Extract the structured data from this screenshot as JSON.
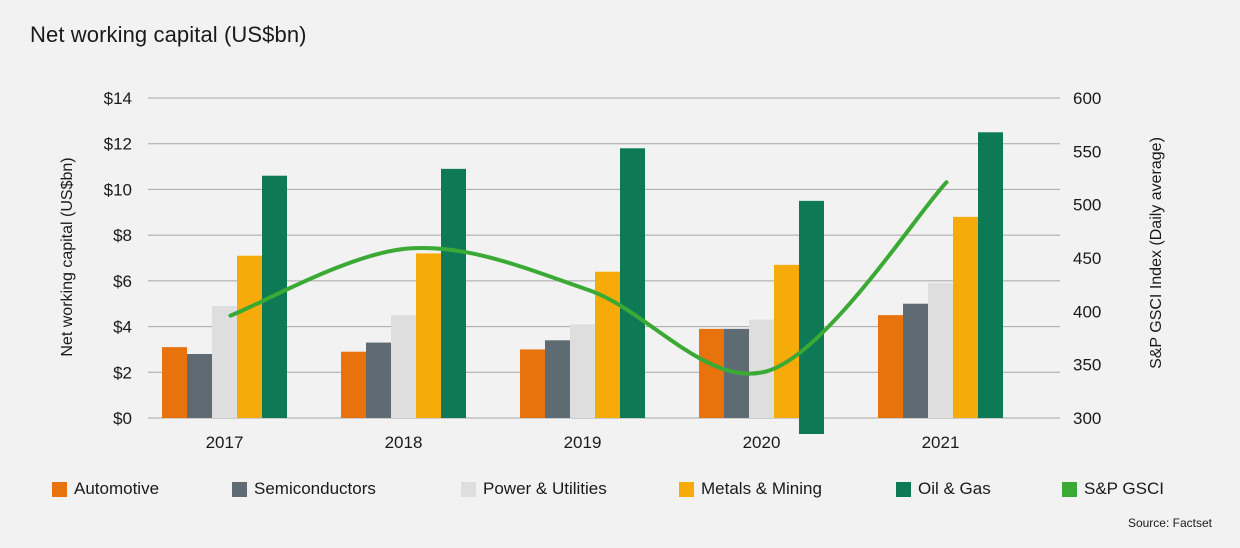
{
  "title": "Net working capital (US$bn)",
  "source": "Source: Factset",
  "chart_data": {
    "type": "bar",
    "categories": [
      "2017",
      "2018",
      "2019",
      "2020",
      "2021"
    ],
    "series": [
      {
        "name": "Automotive",
        "color": "#e8730c",
        "values": [
          3.1,
          2.9,
          3.0,
          3.9,
          4.5
        ]
      },
      {
        "name": "Semiconductors",
        "color": "#5f6b73",
        "values": [
          2.8,
          3.3,
          3.4,
          3.9,
          5.0
        ]
      },
      {
        "name": "Power & Utilities",
        "color": "#dedede",
        "values": [
          4.9,
          4.5,
          4.1,
          4.3,
          5.9
        ]
      },
      {
        "name": "Metals & Mining",
        "color": "#f6ab0a",
        "values": [
          7.1,
          7.2,
          6.4,
          6.7,
          8.8
        ]
      },
      {
        "name": "Oil & Gas",
        "color": "#0d7a55",
        "values": [
          10.6,
          10.9,
          11.8,
          9.5,
          12.5
        ]
      }
    ],
    "line_series": {
      "name": "S&P GSCI",
      "color": "#3aaa35",
      "axis": "right",
      "values": [
        396,
        459,
        420,
        344,
        521
      ]
    },
    "ylabel": "Net working capital (US$bn)",
    "y2label": "S&P GSCI Index (Daily average)",
    "ylim": [
      0,
      14
    ],
    "y2lim": [
      300,
      600
    ],
    "yticks": [
      "$0",
      "$2",
      "$4",
      "$6",
      "$8",
      "$10",
      "$12",
      "$14"
    ],
    "y2ticks": [
      "300",
      "350",
      "400",
      "450",
      "500",
      "550",
      "600"
    ],
    "grid": true,
    "legend_position": "bottom"
  }
}
